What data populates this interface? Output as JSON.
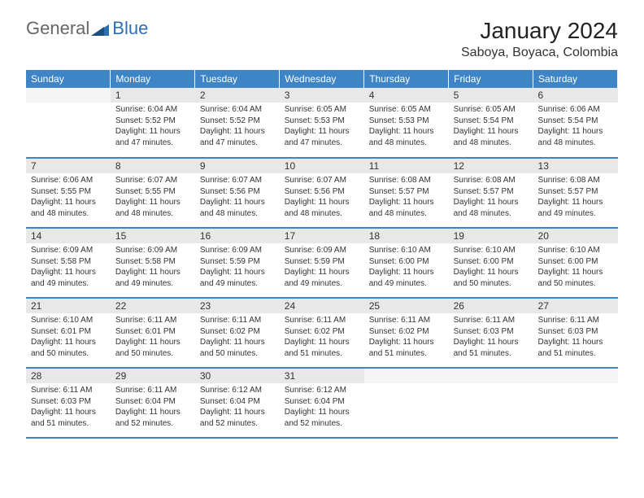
{
  "logo": {
    "text1": "General",
    "text2": "Blue"
  },
  "title": "January 2024",
  "location": "Saboya, Boyaca, Colombia",
  "day_headers": [
    "Sunday",
    "Monday",
    "Tuesday",
    "Wednesday",
    "Thursday",
    "Friday",
    "Saturday"
  ],
  "colors": {
    "header_bg": "#3d85c6",
    "header_text": "#ffffff",
    "daynum_bg": "#e8e8e8",
    "text": "#333333",
    "accent": "#2d6fb3"
  },
  "grid_start_blanks": 1,
  "days": [
    {
      "n": 1,
      "sunrise": "6:04 AM",
      "sunset": "5:52 PM",
      "daylight": "11 hours and 47 minutes."
    },
    {
      "n": 2,
      "sunrise": "6:04 AM",
      "sunset": "5:52 PM",
      "daylight": "11 hours and 47 minutes."
    },
    {
      "n": 3,
      "sunrise": "6:05 AM",
      "sunset": "5:53 PM",
      "daylight": "11 hours and 47 minutes."
    },
    {
      "n": 4,
      "sunrise": "6:05 AM",
      "sunset": "5:53 PM",
      "daylight": "11 hours and 48 minutes."
    },
    {
      "n": 5,
      "sunrise": "6:05 AM",
      "sunset": "5:54 PM",
      "daylight": "11 hours and 48 minutes."
    },
    {
      "n": 6,
      "sunrise": "6:06 AM",
      "sunset": "5:54 PM",
      "daylight": "11 hours and 48 minutes."
    },
    {
      "n": 7,
      "sunrise": "6:06 AM",
      "sunset": "5:55 PM",
      "daylight": "11 hours and 48 minutes."
    },
    {
      "n": 8,
      "sunrise": "6:07 AM",
      "sunset": "5:55 PM",
      "daylight": "11 hours and 48 minutes."
    },
    {
      "n": 9,
      "sunrise": "6:07 AM",
      "sunset": "5:56 PM",
      "daylight": "11 hours and 48 minutes."
    },
    {
      "n": 10,
      "sunrise": "6:07 AM",
      "sunset": "5:56 PM",
      "daylight": "11 hours and 48 minutes."
    },
    {
      "n": 11,
      "sunrise": "6:08 AM",
      "sunset": "5:57 PM",
      "daylight": "11 hours and 48 minutes."
    },
    {
      "n": 12,
      "sunrise": "6:08 AM",
      "sunset": "5:57 PM",
      "daylight": "11 hours and 48 minutes."
    },
    {
      "n": 13,
      "sunrise": "6:08 AM",
      "sunset": "5:57 PM",
      "daylight": "11 hours and 49 minutes."
    },
    {
      "n": 14,
      "sunrise": "6:09 AM",
      "sunset": "5:58 PM",
      "daylight": "11 hours and 49 minutes."
    },
    {
      "n": 15,
      "sunrise": "6:09 AM",
      "sunset": "5:58 PM",
      "daylight": "11 hours and 49 minutes."
    },
    {
      "n": 16,
      "sunrise": "6:09 AM",
      "sunset": "5:59 PM",
      "daylight": "11 hours and 49 minutes."
    },
    {
      "n": 17,
      "sunrise": "6:09 AM",
      "sunset": "5:59 PM",
      "daylight": "11 hours and 49 minutes."
    },
    {
      "n": 18,
      "sunrise": "6:10 AM",
      "sunset": "6:00 PM",
      "daylight": "11 hours and 49 minutes."
    },
    {
      "n": 19,
      "sunrise": "6:10 AM",
      "sunset": "6:00 PM",
      "daylight": "11 hours and 50 minutes."
    },
    {
      "n": 20,
      "sunrise": "6:10 AM",
      "sunset": "6:00 PM",
      "daylight": "11 hours and 50 minutes."
    },
    {
      "n": 21,
      "sunrise": "6:10 AM",
      "sunset": "6:01 PM",
      "daylight": "11 hours and 50 minutes."
    },
    {
      "n": 22,
      "sunrise": "6:11 AM",
      "sunset": "6:01 PM",
      "daylight": "11 hours and 50 minutes."
    },
    {
      "n": 23,
      "sunrise": "6:11 AM",
      "sunset": "6:02 PM",
      "daylight": "11 hours and 50 minutes."
    },
    {
      "n": 24,
      "sunrise": "6:11 AM",
      "sunset": "6:02 PM",
      "daylight": "11 hours and 51 minutes."
    },
    {
      "n": 25,
      "sunrise": "6:11 AM",
      "sunset": "6:02 PM",
      "daylight": "11 hours and 51 minutes."
    },
    {
      "n": 26,
      "sunrise": "6:11 AM",
      "sunset": "6:03 PM",
      "daylight": "11 hours and 51 minutes."
    },
    {
      "n": 27,
      "sunrise": "6:11 AM",
      "sunset": "6:03 PM",
      "daylight": "11 hours and 51 minutes."
    },
    {
      "n": 28,
      "sunrise": "6:11 AM",
      "sunset": "6:03 PM",
      "daylight": "11 hours and 51 minutes."
    },
    {
      "n": 29,
      "sunrise": "6:11 AM",
      "sunset": "6:04 PM",
      "daylight": "11 hours and 52 minutes."
    },
    {
      "n": 30,
      "sunrise": "6:12 AM",
      "sunset": "6:04 PM",
      "daylight": "11 hours and 52 minutes."
    },
    {
      "n": 31,
      "sunrise": "6:12 AM",
      "sunset": "6:04 PM",
      "daylight": "11 hours and 52 minutes."
    }
  ],
  "labels": {
    "sunrise": "Sunrise:",
    "sunset": "Sunset:",
    "daylight": "Daylight:"
  }
}
